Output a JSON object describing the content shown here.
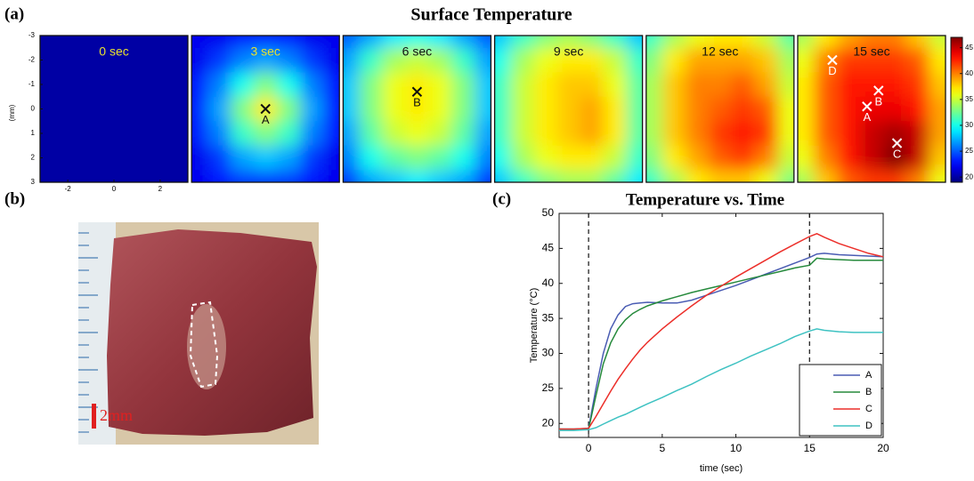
{
  "chart_data": [
    {
      "type": "heatmap",
      "panel_label": "(a)",
      "title": "Surface Temperature",
      "ylabel": "(mm)",
      "x": [
        -3,
        -2,
        -1,
        0,
        1,
        2,
        3
      ],
      "y": [
        -3,
        -2,
        -1,
        0,
        1,
        2,
        3
      ],
      "xlim": [
        -3.2,
        3.2
      ],
      "ylim": [
        -3,
        3
      ],
      "xticks": [
        -2,
        0,
        2
      ],
      "yticks": [
        -3,
        -2,
        -1,
        0,
        1,
        2,
        3
      ],
      "colormap": "jet",
      "clim": [
        19,
        47
      ],
      "cticks": [
        20,
        25,
        30,
        35,
        40,
        45
      ],
      "frames": [
        {
          "label": "0 sec",
          "label_color": "#e8e030",
          "marker_color": "#111111",
          "markers": [],
          "values": [
            [
              20,
              20,
              20,
              20,
              20,
              20,
              20
            ],
            [
              20,
              20,
              20,
              20,
              20,
              20,
              20
            ],
            [
              20,
              20,
              20,
              20,
              20,
              20,
              20
            ],
            [
              20,
              20,
              20,
              20,
              20,
              20,
              20
            ],
            [
              20,
              20,
              20,
              20,
              20,
              20,
              20
            ],
            [
              20,
              20,
              20,
              20,
              20,
              20,
              20
            ],
            [
              20,
              20,
              20,
              20,
              20,
              20,
              20
            ]
          ]
        },
        {
          "label": "3 sec",
          "label_color": "#e8e030",
          "marker_color": "#111111",
          "markers": [
            {
              "label": "A",
              "x": 0,
              "y": 0
            }
          ],
          "values": [
            [
              22,
              22,
              23,
              23,
              23,
              22,
              22
            ],
            [
              22,
              24,
              26,
              27,
              26,
              24,
              22
            ],
            [
              23,
              26,
              30,
              33,
              30,
              26,
              23
            ],
            [
              23,
              27,
              33,
              37,
              33,
              27,
              23
            ],
            [
              23,
              26,
              31,
              33,
              31,
              26,
              23
            ],
            [
              22,
              24,
              27,
              28,
              27,
              24,
              22
            ],
            [
              22,
              23,
              24,
              24,
              24,
              23,
              22
            ]
          ]
        },
        {
          "label": "6 sec",
          "label_color": "#111111",
          "marker_color": "#111111",
          "markers": [
            {
              "label": "B",
              "x": 0,
              "y": -0.7
            }
          ],
          "values": [
            [
              25,
              27,
              29,
              30,
              29,
              27,
              25
            ],
            [
              27,
              31,
              34,
              35,
              34,
              31,
              27
            ],
            [
              28,
              33,
              36,
              37,
              36,
              33,
              28
            ],
            [
              28,
              33,
              36,
              37,
              36,
              33,
              28
            ],
            [
              27,
              32,
              35,
              36,
              35,
              32,
              27
            ],
            [
              26,
              30,
              32,
              33,
              32,
              30,
              26
            ],
            [
              24,
              27,
              28,
              29,
              28,
              27,
              24
            ]
          ]
        },
        {
          "label": "9 sec",
          "label_color": "#111111",
          "marker_color": "#111111",
          "markers": [],
          "values": [
            [
              28,
              31,
              33,
              34,
              33,
              31,
              28
            ],
            [
              30,
              34,
              36,
              37,
              37,
              35,
              31
            ],
            [
              31,
              35,
              37,
              38,
              38,
              36,
              32
            ],
            [
              31,
              35,
              37,
              38,
              39,
              37,
              32
            ],
            [
              31,
              35,
              37,
              38,
              39,
              37,
              32
            ],
            [
              30,
              34,
              36,
              37,
              37,
              35,
              31
            ],
            [
              28,
              31,
              33,
              34,
              34,
              32,
              29
            ]
          ]
        },
        {
          "label": "12 sec",
          "label_color": "#111111",
          "marker_color": "#111111",
          "markers": [],
          "values": [
            [
              31,
              34,
              36,
              37,
              37,
              35,
              32
            ],
            [
              33,
              37,
              39,
              39,
              39,
              38,
              34
            ],
            [
              34,
              38,
              40,
              40,
              41,
              39,
              35
            ],
            [
              34,
              38,
              40,
              41,
              42,
              41,
              36
            ],
            [
              34,
              38,
              40,
              42,
              43,
              42,
              36
            ],
            [
              33,
              37,
              39,
              41,
              42,
              40,
              35
            ],
            [
              31,
              34,
              37,
              38,
              38,
              36,
              33
            ]
          ]
        },
        {
          "label": "15 sec",
          "label_color": "#111111",
          "marker_color": "#ffffff",
          "markers": [
            {
              "label": "D",
              "x": -1.7,
              "y": -2.0
            },
            {
              "label": "B",
              "x": 0.3,
              "y": -0.75
            },
            {
              "label": "A",
              "x": -0.2,
              "y": -0.1
            },
            {
              "label": "C",
              "x": 1.1,
              "y": 1.4
            }
          ],
          "values": [
            [
              34,
              37,
              39,
              40,
              40,
              38,
              35
            ],
            [
              36,
              40,
              42,
              42,
              42,
              41,
              37
            ],
            [
              37,
              41,
              43,
              43,
              43,
              42,
              38
            ],
            [
              37,
              41,
              43,
              44,
              44,
              43,
              39
            ],
            [
              37,
              41,
              43,
              45,
              46,
              45,
              39
            ],
            [
              36,
              40,
              43,
              45,
              47,
              45,
              38
            ],
            [
              34,
              38,
              41,
              42,
              42,
              40,
              36
            ]
          ]
        }
      ]
    },
    {
      "type": "line",
      "panel_label": "(c)",
      "title": "Temperature vs. Time",
      "xlabel": "time (sec)",
      "ylabel": "Temperature (°C)",
      "xlim": [
        -2,
        20
      ],
      "ylim": [
        18,
        50
      ],
      "xticks": [
        0,
        5,
        10,
        15,
        20
      ],
      "yticks": [
        20,
        25,
        30,
        35,
        40,
        45,
        50
      ],
      "vlines": [
        0,
        15
      ],
      "legend": "lower right",
      "x": [
        -2,
        -1,
        0,
        0.5,
        1,
        1.5,
        2,
        2.5,
        3,
        3.5,
        4,
        5,
        6,
        7,
        8,
        9,
        10,
        11,
        12,
        13,
        14,
        15,
        15.5,
        16,
        17,
        18,
        19,
        20
      ],
      "series": [
        {
          "name": "A",
          "color": "#4a5cb3",
          "values": [
            19.2,
            19.2,
            19.3,
            25,
            30,
            33.5,
            35.5,
            36.7,
            37.1,
            37.2,
            37.3,
            37.2,
            37.2,
            37.6,
            38.3,
            39,
            39.7,
            40.5,
            41.3,
            42.1,
            42.9,
            43.7,
            44.2,
            44.3,
            44.1,
            44,
            43.9,
            43.8
          ]
        },
        {
          "name": "B",
          "color": "#268a3c",
          "values": [
            19.2,
            19.2,
            19.2,
            24,
            28.5,
            31.5,
            33.5,
            34.8,
            35.7,
            36.3,
            36.8,
            37.5,
            38.1,
            38.7,
            39.2,
            39.7,
            40.2,
            40.7,
            41.2,
            41.7,
            42.2,
            42.6,
            43.6,
            43.5,
            43.4,
            43.3,
            43.3,
            43.3
          ]
        },
        {
          "name": "C",
          "color": "#ec2f2a",
          "values": [
            19.2,
            19.2,
            19.3,
            21,
            22.8,
            24.6,
            26.3,
            27.8,
            29.2,
            30.5,
            31.6,
            33.5,
            35.2,
            36.8,
            38.3,
            39.6,
            40.9,
            42.1,
            43.3,
            44.5,
            45.6,
            46.7,
            47.1,
            46.6,
            45.7,
            45,
            44.3,
            43.8
          ]
        },
        {
          "name": "D",
          "color": "#3ec2c2",
          "values": [
            19,
            19,
            19.1,
            19.4,
            19.9,
            20.4,
            20.9,
            21.3,
            21.8,
            22.3,
            22.8,
            23.7,
            24.7,
            25.6,
            26.7,
            27.7,
            28.6,
            29.6,
            30.5,
            31.4,
            32.4,
            33.2,
            33.5,
            33.3,
            33.1,
            33,
            33,
            33
          ]
        }
      ]
    }
  ],
  "photo": {
    "panel_label": "(b)",
    "scale_label": "2mm"
  }
}
